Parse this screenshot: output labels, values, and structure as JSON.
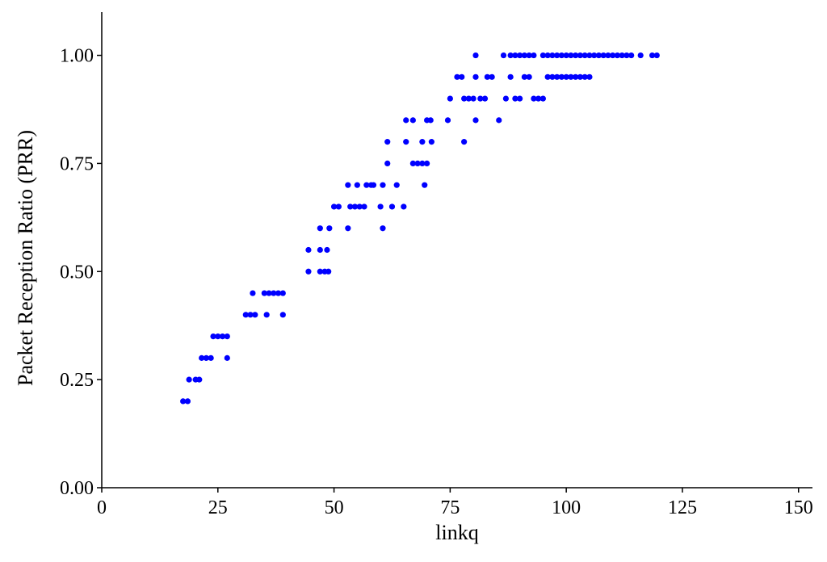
{
  "chart_data": {
    "type": "scatter",
    "title": "",
    "xlabel": "linkq",
    "ylabel": "Packet Reception Ratio (PRR)",
    "xlim": [
      0,
      153
    ],
    "ylim": [
      0,
      1.1
    ],
    "x_ticks": [
      0,
      25,
      50,
      75,
      100,
      125,
      150
    ],
    "x_tick_labels": [
      "0",
      "25",
      "50",
      "75",
      "100",
      "125",
      "150"
    ],
    "y_ticks": [
      0,
      0.25,
      0.5,
      0.75,
      1.0
    ],
    "y_tick_labels": [
      "0.00",
      "0.25",
      "0.50",
      "0.75",
      "1.00"
    ],
    "grid": false,
    "legend": "none",
    "point_color": "#0000ff",
    "series": [
      {
        "points": [
          [
            17.5,
            0.2
          ],
          [
            18.5,
            0.2
          ],
          [
            18.8,
            0.25
          ],
          [
            20.2,
            0.25
          ],
          [
            21,
            0.25
          ],
          [
            21.5,
            0.3
          ],
          [
            22.5,
            0.3
          ],
          [
            23.5,
            0.3
          ],
          [
            27,
            0.3
          ],
          [
            24,
            0.35
          ],
          [
            25,
            0.35
          ],
          [
            26,
            0.35
          ],
          [
            27,
            0.35
          ],
          [
            31,
            0.4
          ],
          [
            32,
            0.4
          ],
          [
            33,
            0.4
          ],
          [
            35.5,
            0.4
          ],
          [
            39,
            0.4
          ],
          [
            32.5,
            0.45
          ],
          [
            35,
            0.45
          ],
          [
            36,
            0.45
          ],
          [
            37,
            0.45
          ],
          [
            38,
            0.45
          ],
          [
            39,
            0.45
          ],
          [
            44.5,
            0.5
          ],
          [
            47,
            0.5
          ],
          [
            48,
            0.5
          ],
          [
            48.8,
            0.5
          ],
          [
            44.5,
            0.55
          ],
          [
            47,
            0.55
          ],
          [
            48.5,
            0.55
          ],
          [
            47,
            0.6
          ],
          [
            49,
            0.6
          ],
          [
            53,
            0.6
          ],
          [
            60.5,
            0.6
          ],
          [
            50,
            0.65
          ],
          [
            51,
            0.65
          ],
          [
            53.5,
            0.65
          ],
          [
            54.5,
            0.65
          ],
          [
            55.5,
            0.65
          ],
          [
            56.5,
            0.65
          ],
          [
            60,
            0.65
          ],
          [
            62.5,
            0.65
          ],
          [
            65,
            0.65
          ],
          [
            53,
            0.7
          ],
          [
            55,
            0.7
          ],
          [
            57,
            0.7
          ],
          [
            58,
            0.7
          ],
          [
            58.5,
            0.7
          ],
          [
            60.5,
            0.7
          ],
          [
            63.5,
            0.7
          ],
          [
            69.5,
            0.7
          ],
          [
            61.5,
            0.75
          ],
          [
            67,
            0.75
          ],
          [
            68,
            0.75
          ],
          [
            69,
            0.75
          ],
          [
            70,
            0.75
          ],
          [
            61.5,
            0.8
          ],
          [
            65.5,
            0.8
          ],
          [
            69,
            0.8
          ],
          [
            71,
            0.8
          ],
          [
            78,
            0.8
          ],
          [
            65.5,
            0.85
          ],
          [
            67,
            0.85
          ],
          [
            70,
            0.85
          ],
          [
            70.8,
            0.85
          ],
          [
            74.5,
            0.85
          ],
          [
            80.5,
            0.85
          ],
          [
            85.5,
            0.85
          ],
          [
            75,
            0.9
          ],
          [
            78,
            0.9
          ],
          [
            79,
            0.9
          ],
          [
            80,
            0.9
          ],
          [
            81.5,
            0.9
          ],
          [
            82.5,
            0.9
          ],
          [
            87,
            0.9
          ],
          [
            89,
            0.9
          ],
          [
            90,
            0.9
          ],
          [
            93,
            0.9
          ],
          [
            94,
            0.9
          ],
          [
            95,
            0.9
          ],
          [
            76.5,
            0.95
          ],
          [
            77.5,
            0.95
          ],
          [
            80.5,
            0.95
          ],
          [
            83,
            0.95
          ],
          [
            84,
            0.95
          ],
          [
            88,
            0.95
          ],
          [
            91,
            0.95
          ],
          [
            92,
            0.95
          ],
          [
            96,
            0.95
          ],
          [
            97,
            0.95
          ],
          [
            98,
            0.95
          ],
          [
            99,
            0.95
          ],
          [
            100,
            0.95
          ],
          [
            101,
            0.95
          ],
          [
            102,
            0.95
          ],
          [
            103,
            0.95
          ],
          [
            104,
            0.95
          ],
          [
            105,
            0.95
          ],
          [
            80.5,
            1.0
          ],
          [
            86.5,
            1.0
          ],
          [
            88,
            1.0
          ],
          [
            89,
            1.0
          ],
          [
            90,
            1.0
          ],
          [
            91,
            1.0
          ],
          [
            92,
            1.0
          ],
          [
            93,
            1.0
          ],
          [
            95,
            1.0
          ],
          [
            96,
            1.0
          ],
          [
            97,
            1.0
          ],
          [
            98,
            1.0
          ],
          [
            99,
            1.0
          ],
          [
            100,
            1.0
          ],
          [
            101,
            1.0
          ],
          [
            102,
            1.0
          ],
          [
            103,
            1.0
          ],
          [
            104,
            1.0
          ],
          [
            105,
            1.0
          ],
          [
            106,
            1.0
          ],
          [
            107,
            1.0
          ],
          [
            108,
            1.0
          ],
          [
            109,
            1.0
          ],
          [
            110,
            1.0
          ],
          [
            111,
            1.0
          ],
          [
            112,
            1.0
          ],
          [
            113,
            1.0
          ],
          [
            114,
            1.0
          ],
          [
            116,
            1.0
          ],
          [
            118.5,
            1.0
          ],
          [
            119.5,
            1.0
          ]
        ]
      }
    ]
  }
}
